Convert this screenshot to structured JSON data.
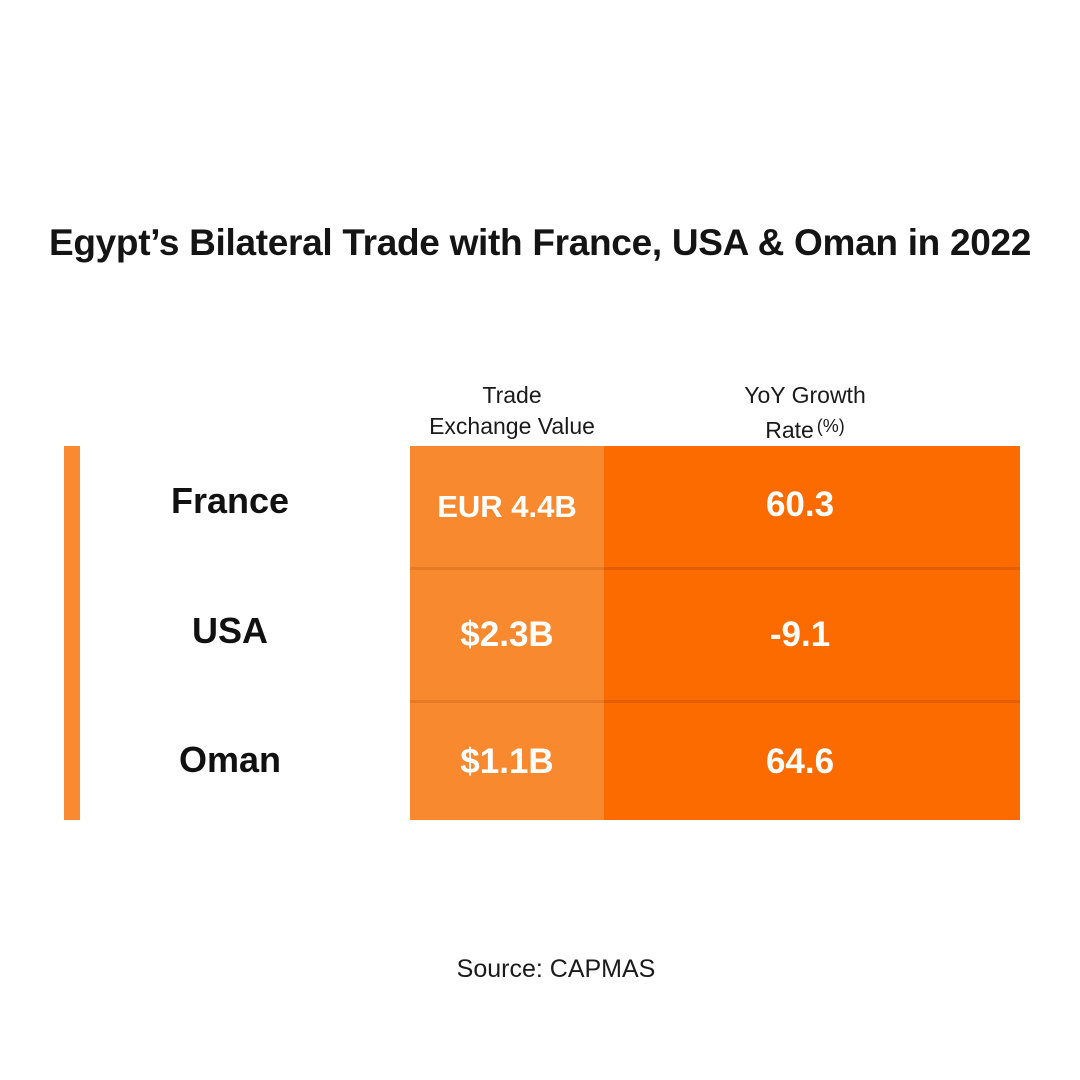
{
  "title": "Egypt’s Bilateral Trade with France, USA & Oman in 2022",
  "columns": {
    "trade_line1": "Trade",
    "trade_line2": "Exchange Value",
    "growth_line1": "YoY Growth",
    "growth_line2": "Rate",
    "growth_unit": "(%)"
  },
  "source": "Source: CAPMAS",
  "colors": {
    "accent": "#FA8A32",
    "trade_fill": "#F8892F",
    "growth_fill": "#FC6B00",
    "row_divider": "#E25E00",
    "trade_divider": "#E77A24"
  },
  "chart_data": {
    "type": "table",
    "title": "Egypt’s Bilateral Trade with France, USA & Oman in 2022",
    "columns": [
      "Trade Exchange Value",
      "YoY Growth Rate (%)"
    ],
    "rows": [
      {
        "country": "France",
        "trade_value": "EUR 4.4B",
        "growth_rate": "60.3"
      },
      {
        "country": "USA",
        "trade_value": "$2.3B",
        "growth_rate": "-9.1"
      },
      {
        "country": "Oman",
        "trade_value": "$1.1B",
        "growth_rate": "64.6"
      }
    ]
  }
}
